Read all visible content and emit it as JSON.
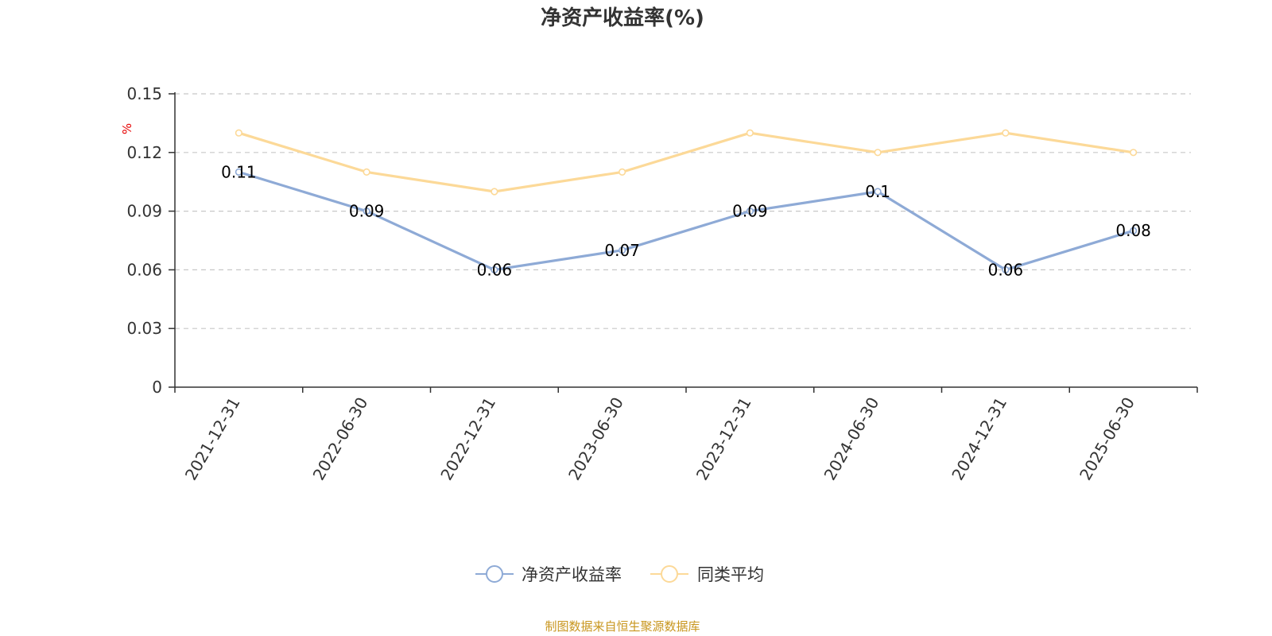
{
  "chart_data": {
    "type": "line",
    "title": "净资产收益率(%)",
    "ylabel": "%",
    "ylim": [
      0,
      0.15
    ],
    "yticks": [
      "0",
      "0.03",
      "0.06",
      "0.09",
      "0.12",
      "0.15"
    ],
    "x": [
      "2021-12-31",
      "2022-06-30",
      "2022-12-31",
      "2023-06-30",
      "2023-12-31",
      "2024-06-30",
      "2024-12-31",
      "2025-06-30"
    ],
    "series": [
      {
        "name": "净资产收益率",
        "color": "#8eaad6",
        "values": [
          0.11,
          0.09,
          0.06,
          0.07,
          0.09,
          0.1,
          0.06,
          0.08
        ],
        "labels": [
          "0.11",
          "0.09",
          "0.06",
          "0.07",
          "0.09",
          "0.1",
          "0.06",
          "0.08"
        ]
      },
      {
        "name": "同类平均",
        "color": "#fcd998",
        "values": [
          0.13,
          0.11,
          0.1,
          0.11,
          0.13,
          0.12,
          0.13,
          0.12
        ]
      }
    ],
    "grid": true,
    "legend_position": "bottom"
  },
  "footer": {
    "source": "制图数据来自恒生聚源数据库"
  }
}
